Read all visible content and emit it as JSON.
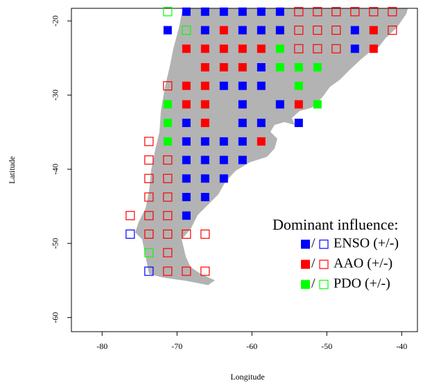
{
  "chart_data": {
    "type": "scatter",
    "xlabel": "Longitude",
    "ylabel": "Latitude",
    "xlim": [
      -84.1,
      -37.9
    ],
    "ylim": [
      -61.9,
      -18.3
    ],
    "xticks": [
      -80,
      -70,
      -60,
      -50,
      -40
    ],
    "yticks": [
      -20,
      -30,
      -40,
      -50,
      -60
    ],
    "legend_title": "Dominant influence:",
    "legend_separator": "/",
    "legend_position": "lower right",
    "series": [
      {
        "name": "ENSO (+/-)",
        "color": "#0000ff",
        "x": [
          -68.75,
          -66.25,
          -63.75,
          -61.25,
          -58.75,
          -56.25,
          -71.25,
          -66.25,
          -61.25,
          -58.75,
          -56.25,
          -46.25,
          -46.25,
          -58.75,
          -63.75,
          -61.25,
          -58.75,
          -61.25,
          -56.25,
          -68.75,
          -61.25,
          -58.75,
          -53.75,
          -68.75,
          -66.25,
          -63.75,
          -61.25,
          -68.75,
          -66.25,
          -63.75,
          -61.25,
          -68.75,
          -66.25,
          -63.75,
          -68.75,
          -66.25,
          -68.75,
          -76.25,
          -73.75
        ],
        "y": [
          -18.75,
          -18.75,
          -18.75,
          -18.75,
          -18.75,
          -18.75,
          -21.25,
          -21.25,
          -21.25,
          -21.25,
          -21.25,
          -21.25,
          -23.75,
          -26.25,
          -28.75,
          -28.75,
          -28.75,
          -31.25,
          -31.25,
          -33.75,
          -33.75,
          -33.75,
          -33.75,
          -36.25,
          -36.25,
          -36.25,
          -36.25,
          -38.75,
          -38.75,
          -38.75,
          -38.75,
          -41.25,
          -41.25,
          -41.25,
          -43.75,
          -43.75,
          -46.25,
          -48.75,
          -53.75
        ],
        "sign": [
          "+",
          "+",
          "+",
          "+",
          "+",
          "+",
          "+",
          "+",
          "+",
          "+",
          "+",
          "+",
          "+",
          "+",
          "+",
          "+",
          "+",
          "+",
          "+",
          "+",
          "+",
          "+",
          "+",
          "+",
          "+",
          "+",
          "+",
          "+",
          "+",
          "+",
          "+",
          "+",
          "+",
          "+",
          "+",
          "+",
          "+",
          "-",
          "-"
        ]
      },
      {
        "name": "AAO (+/-)",
        "color": "#ff0000",
        "x": [
          -53.75,
          -51.25,
          -48.75,
          -46.25,
          -43.75,
          -41.25,
          -63.75,
          -53.75,
          -51.25,
          -48.75,
          -43.75,
          -41.25,
          -68.75,
          -66.25,
          -63.75,
          -61.25,
          -58.75,
          -53.75,
          -51.25,
          -48.75,
          -43.75,
          -66.25,
          -63.75,
          -61.25,
          -71.25,
          -68.75,
          -66.25,
          -68.75,
          -66.25,
          -53.75,
          -66.25,
          -73.75,
          -58.75,
          -73.75,
          -71.25,
          -73.75,
          -71.25,
          -73.75,
          -71.25,
          -76.25,
          -73.75,
          -71.25,
          -73.75,
          -71.25,
          -68.75,
          -66.25,
          -71.25,
          -71.25,
          -68.75,
          -66.25
        ],
        "y": [
          -18.75,
          -18.75,
          -18.75,
          -18.75,
          -18.75,
          -18.75,
          -21.25,
          -21.25,
          -21.25,
          -21.25,
          -21.25,
          -21.25,
          -23.75,
          -23.75,
          -23.75,
          -23.75,
          -23.75,
          -23.75,
          -23.75,
          -23.75,
          -23.75,
          -26.25,
          -26.25,
          -26.25,
          -28.75,
          -28.75,
          -28.75,
          -31.25,
          -31.25,
          -31.25,
          -33.75,
          -36.25,
          -36.25,
          -38.75,
          -38.75,
          -41.25,
          -41.25,
          -43.75,
          -43.75,
          -46.25,
          -46.25,
          -46.25,
          -48.75,
          -48.75,
          -48.75,
          -48.75,
          -51.25,
          -53.75,
          -53.75,
          -53.75
        ],
        "sign": [
          "-",
          "-",
          "-",
          "-",
          "-",
          "-",
          "+",
          "-",
          "-",
          "-",
          "+",
          "-",
          "+",
          "+",
          "+",
          "+",
          "+",
          "-",
          "-",
          "-",
          "+",
          "+",
          "+",
          "+",
          "-",
          "+",
          "+",
          "+",
          "+",
          "+",
          "+",
          "-",
          "+",
          "-",
          "-",
          "-",
          "-",
          "-",
          "-",
          "-",
          "-",
          "-",
          "-",
          "-",
          "-",
          "-",
          "-",
          "-",
          "-",
          "-"
        ]
      },
      {
        "name": "PDO (+/-)",
        "color": "#00ff00",
        "x": [
          -71.25,
          -68.75,
          -56.25,
          -56.25,
          -53.75,
          -51.25,
          -53.75,
          -71.25,
          -51.25,
          -71.25,
          -71.25,
          -73.75
        ],
        "y": [
          -18.75,
          -21.25,
          -23.75,
          -26.25,
          -26.25,
          -26.25,
          -28.75,
          -31.25,
          -31.25,
          -33.75,
          -36.25,
          -51.25
        ],
        "sign": [
          "-",
          "-",
          "+",
          "+",
          "+",
          "+",
          "+",
          "+",
          "+",
          "+",
          "+",
          "-"
        ]
      }
    ]
  }
}
